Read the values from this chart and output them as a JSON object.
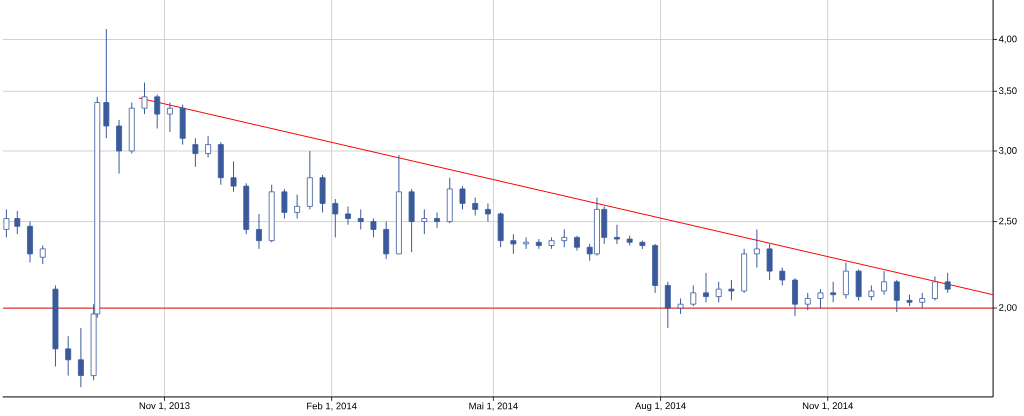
{
  "chart_data": {
    "type": "candlestick",
    "log": true,
    "grid": true,
    "xlim": [
      "2013-08-04",
      "2015-01-31"
    ],
    "ylim": [
      1.59,
      4.43
    ],
    "xticks": [
      {
        "value": "2013-11-01",
        "label": "Nov 1, 2013"
      },
      {
        "value": "2014-02-01",
        "label": "Feb 1, 2014"
      },
      {
        "value": "2014-05-01",
        "label": "Mai 1, 2014"
      },
      {
        "value": "2014-08-01",
        "label": "Aug 1, 2014"
      },
      {
        "value": "2014-11-01",
        "label": "Nov 1, 2014"
      }
    ],
    "yticks": [
      {
        "value": 2,
        "label": "2,00"
      },
      {
        "value": 2.5,
        "label": "2,50"
      },
      {
        "value": 3,
        "label": "3,00"
      },
      {
        "value": 3.5,
        "label": "3,50"
      },
      {
        "value": 4,
        "label": "4,00"
      }
    ],
    "ref_lines": [
      {
        "axis": "y",
        "value": 2,
        "color": "#e00000"
      }
    ],
    "series": [
      {
        "type": "candlestick",
        "color": "#3a5a9c",
        "x": [
          "2013-08-06",
          "2013-08-12",
          "2013-08-19",
          "2013-08-26",
          "2013-09-02",
          "2013-09-09",
          "2013-09-16",
          "2013-09-23",
          "2013-09-25",
          "2013-09-30",
          "2013-10-07",
          "2013-10-14",
          "2013-10-21",
          "2013-10-28",
          "2013-11-04",
          "2013-11-11",
          "2013-11-18",
          "2013-11-25",
          "2013-12-02",
          "2013-12-09",
          "2013-12-16",
          "2013-12-23",
          "2013-12-30",
          "2014-01-06",
          "2014-01-13",
          "2014-01-20",
          "2014-01-27",
          "2014-02-03",
          "2014-02-10",
          "2014-02-17",
          "2014-02-24",
          "2014-03-03",
          "2014-03-10",
          "2014-03-17",
          "2014-03-24",
          "2014-03-31",
          "2014-04-07",
          "2014-04-14",
          "2014-04-21",
          "2014-04-28",
          "2014-05-05",
          "2014-05-12",
          "2014-05-19",
          "2014-05-26",
          "2014-06-02",
          "2014-06-09",
          "2014-06-16",
          "2014-06-23",
          "2014-06-27",
          "2014-07-01",
          "2014-07-08",
          "2014-07-15",
          "2014-07-22",
          "2014-07-29",
          "2014-08-05",
          "2014-08-12",
          "2014-08-19",
          "2014-08-26",
          "2014-09-02",
          "2014-09-09",
          "2014-09-16",
          "2014-09-23",
          "2014-09-30",
          "2014-10-07",
          "2014-10-14",
          "2014-10-21",
          "2014-10-28",
          "2014-11-04",
          "2014-11-11",
          "2014-11-18",
          "2014-11-25",
          "2014-12-02",
          "2014-12-09",
          "2014-12-16",
          "2014-12-23",
          "2014-12-30",
          "2015-01-06"
        ],
        "ohlc": [
          [
            2.45,
            2.58,
            2.4,
            2.52
          ],
          [
            2.52,
            2.57,
            2.42,
            2.47
          ],
          [
            2.47,
            2.5,
            2.25,
            2.3
          ],
          [
            2.28,
            2.35,
            2.24,
            2.33
          ],
          [
            2.1,
            2.12,
            1.72,
            1.8
          ],
          [
            1.8,
            1.86,
            1.68,
            1.75
          ],
          [
            1.75,
            1.9,
            1.63,
            1.68
          ],
          [
            1.68,
            2.02,
            1.66,
            1.97
          ],
          [
            1.97,
            3.45,
            1.95,
            3.4
          ],
          [
            3.4,
            4.11,
            3.1,
            3.2
          ],
          [
            3.2,
            3.25,
            2.83,
            3.0
          ],
          [
            3.0,
            3.4,
            2.98,
            3.35
          ],
          [
            3.35,
            3.58,
            3.3,
            3.45
          ],
          [
            3.45,
            3.47,
            3.18,
            3.3
          ],
          [
            3.3,
            3.4,
            3.15,
            3.35
          ],
          [
            3.35,
            3.38,
            3.05,
            3.1
          ],
          [
            3.05,
            3.1,
            2.88,
            2.98
          ],
          [
            2.98,
            3.12,
            2.95,
            3.05
          ],
          [
            3.05,
            3.07,
            2.75,
            2.8
          ],
          [
            2.8,
            2.92,
            2.7,
            2.74
          ],
          [
            2.74,
            2.76,
            2.42,
            2.45
          ],
          [
            2.45,
            2.55,
            2.33,
            2.38
          ],
          [
            2.38,
            2.75,
            2.37,
            2.7
          ],
          [
            2.7,
            2.72,
            2.52,
            2.56
          ],
          [
            2.56,
            2.68,
            2.52,
            2.6
          ],
          [
            2.6,
            3.0,
            2.58,
            2.8
          ],
          [
            2.8,
            2.82,
            2.56,
            2.62
          ],
          [
            2.62,
            2.65,
            2.4,
            2.55
          ],
          [
            2.55,
            2.6,
            2.48,
            2.52
          ],
          [
            2.52,
            2.58,
            2.45,
            2.5
          ],
          [
            2.5,
            2.52,
            2.4,
            2.45
          ],
          [
            2.45,
            2.5,
            2.27,
            2.3
          ],
          [
            2.3,
            2.97,
            2.3,
            2.7
          ],
          [
            2.7,
            2.72,
            2.31,
            2.5
          ],
          [
            2.5,
            2.58,
            2.42,
            2.52
          ],
          [
            2.52,
            2.56,
            2.46,
            2.5
          ],
          [
            2.5,
            2.8,
            2.49,
            2.72
          ],
          [
            2.72,
            2.74,
            2.58,
            2.62
          ],
          [
            2.62,
            2.66,
            2.54,
            2.58
          ],
          [
            2.58,
            2.62,
            2.5,
            2.55
          ],
          [
            2.55,
            2.56,
            2.34,
            2.38
          ],
          [
            2.38,
            2.42,
            2.3,
            2.36
          ],
          [
            2.36,
            2.4,
            2.33,
            2.37
          ],
          [
            2.37,
            2.39,
            2.33,
            2.35
          ],
          [
            2.35,
            2.4,
            2.33,
            2.38
          ],
          [
            2.38,
            2.45,
            2.34,
            2.4
          ],
          [
            2.4,
            2.41,
            2.32,
            2.34
          ],
          [
            2.34,
            2.36,
            2.26,
            2.3
          ],
          [
            2.3,
            2.66,
            2.29,
            2.58
          ],
          [
            2.58,
            2.6,
            2.36,
            2.4
          ],
          [
            2.4,
            2.48,
            2.36,
            2.39
          ],
          [
            2.39,
            2.41,
            2.35,
            2.37
          ],
          [
            2.37,
            2.38,
            2.33,
            2.35
          ],
          [
            2.35,
            2.36,
            2.08,
            2.12
          ],
          [
            2.12,
            2.14,
            1.9,
            2.0
          ],
          [
            2.0,
            2.05,
            1.97,
            2.02
          ],
          [
            2.02,
            2.12,
            2.01,
            2.08
          ],
          [
            2.08,
            2.19,
            2.03,
            2.06
          ],
          [
            2.06,
            2.14,
            2.03,
            2.1
          ],
          [
            2.1,
            2.15,
            2.04,
            2.09
          ],
          [
            2.09,
            2.33,
            2.08,
            2.3
          ],
          [
            2.3,
            2.45,
            2.22,
            2.33
          ],
          [
            2.33,
            2.36,
            2.15,
            2.2
          ],
          [
            2.2,
            2.22,
            2.12,
            2.15
          ],
          [
            2.15,
            2.16,
            1.96,
            2.02
          ],
          [
            2.02,
            2.08,
            1.99,
            2.05
          ],
          [
            2.05,
            2.1,
            2.0,
            2.08
          ],
          [
            2.08,
            2.14,
            2.03,
            2.07
          ],
          [
            2.07,
            2.25,
            2.05,
            2.2
          ],
          [
            2.2,
            2.21,
            2.04,
            2.06
          ],
          [
            2.06,
            2.12,
            2.04,
            2.09
          ],
          [
            2.09,
            2.2,
            2.07,
            2.14
          ],
          [
            2.14,
            2.15,
            1.98,
            2.04
          ],
          [
            2.04,
            2.07,
            2.01,
            2.03
          ],
          [
            2.03,
            2.08,
            2.0,
            2.05
          ],
          [
            2.05,
            2.17,
            2.04,
            2.14
          ],
          [
            2.14,
            2.19,
            2.08,
            2.1
          ]
        ]
      },
      {
        "type": "line",
        "color": "#ff0000",
        "x": [
          "2013-10-18",
          "2015-01-31"
        ],
        "values": [
          3.44,
          2.07
        ]
      }
    ]
  }
}
